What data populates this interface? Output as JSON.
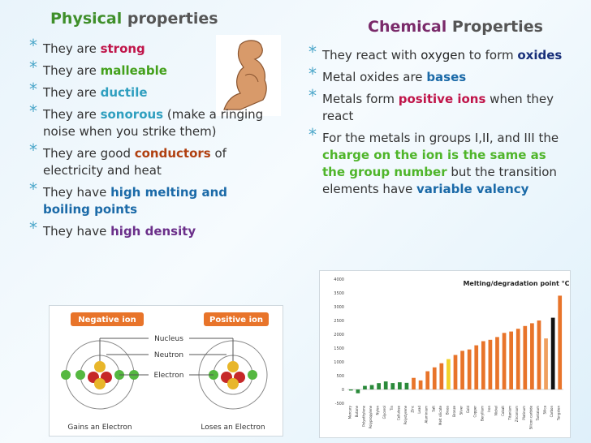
{
  "physical": {
    "title_word1": "Physical",
    "title_word2": "properties",
    "bullets": [
      {
        "pre": "They are ",
        "kw": "strong",
        "post": ""
      },
      {
        "pre": "They are ",
        "kw": "malleable",
        "post": ""
      },
      {
        "pre": "They are ",
        "kw": "ductile",
        "post": ""
      },
      {
        "pre": "They are ",
        "kw": "sonorous",
        "post": " (make a ringing noise when you strike them)"
      },
      {
        "pre": "They are good ",
        "kw": "conductors",
        "post": " of electricity and heat"
      },
      {
        "pre": "They  have ",
        "kw": "high melting and boiling points",
        "post": ""
      },
      {
        "pre": "They have ",
        "kw": "high density",
        "post": ""
      }
    ]
  },
  "chemical": {
    "title_word1": "Chemical",
    "title_word2": "Properties",
    "b1_pre": "They react with ",
    "b1_kw": "oxygen",
    "b1_mid": " to form ",
    "b1_kw2": "oxides",
    "b2_pre": "Metal oxides are ",
    "b2_kw": "bases",
    "b3_pre": "Metals form ",
    "b3_kw": "positive ions",
    "b3_post": " when they react",
    "b4_pre": "For the metals in groups I,II, and III the ",
    "b4_kw": "charge on the ion is the same as the group number",
    "b4_mid": " but the transition elements have ",
    "b4_kw2": "variable valency"
  },
  "ion_diagram": {
    "negative_label": "Negative ion",
    "positive_label": "Positive ion",
    "nucleus": "Nucleus",
    "neutron": "Neutron",
    "electron": "Electron",
    "gains": "Gains an Electron",
    "loses": "Loses an Electron"
  },
  "chart_data": {
    "type": "bar",
    "title": "Melting/degradation point °C",
    "ylim": [
      -500,
      4000
    ],
    "yticks": [
      -500,
      0,
      500,
      1000,
      1500,
      2000,
      2500,
      3000,
      3500,
      4000
    ],
    "categories": [
      "Mercury",
      "Butane",
      "Polyethylene",
      "Polypropylene",
      "Nylon",
      "Glycerol",
      "Tin",
      "Cellulose",
      "Polystyrene",
      "Zinc",
      "Lead",
      "Aluminium",
      "Salt",
      "Melt silicate",
      "Brass",
      "Bronze",
      "Silver",
      "Gold",
      "Copper",
      "Beryllium",
      "Iron",
      "Nickel",
      "Cobalt",
      "Titanium",
      "Zirconium",
      "Platinum",
      "Silicon carbide",
      "Tantalum",
      "Silica",
      "Carbon",
      "Tungsten"
    ],
    "values": [
      -39,
      -138,
      130,
      160,
      230,
      290,
      232,
      260,
      240,
      420,
      327,
      660,
      801,
      950,
      1100,
      1250,
      1400,
      1450,
      1600,
      1750,
      1800,
      1900,
      2050,
      2100,
      2200,
      2300,
      2400,
      2500,
      1850,
      2600,
      3400
    ],
    "colors": [
      "#2a8a3a",
      "#2a8a3a",
      "#2a8a3a",
      "#2a8a3a",
      "#2a8a3a",
      "#2a8a3a",
      "#2a8a3a",
      "#2a8a3a",
      "#2a8a3a",
      "#e8742a",
      "#e8742a",
      "#e8742a",
      "#e8742a",
      "#e8742a",
      "#f2d22a",
      "#e8742a",
      "#e8742a",
      "#e8742a",
      "#e8742a",
      "#e8742a",
      "#e8742a",
      "#e8742a",
      "#e8742a",
      "#e8742a",
      "#e8742a",
      "#e8742a",
      "#e8742a",
      "#e8742a",
      "#f0a060",
      "#111111",
      "#e8742a"
    ],
    "legend_position": "none",
    "grid": false
  }
}
